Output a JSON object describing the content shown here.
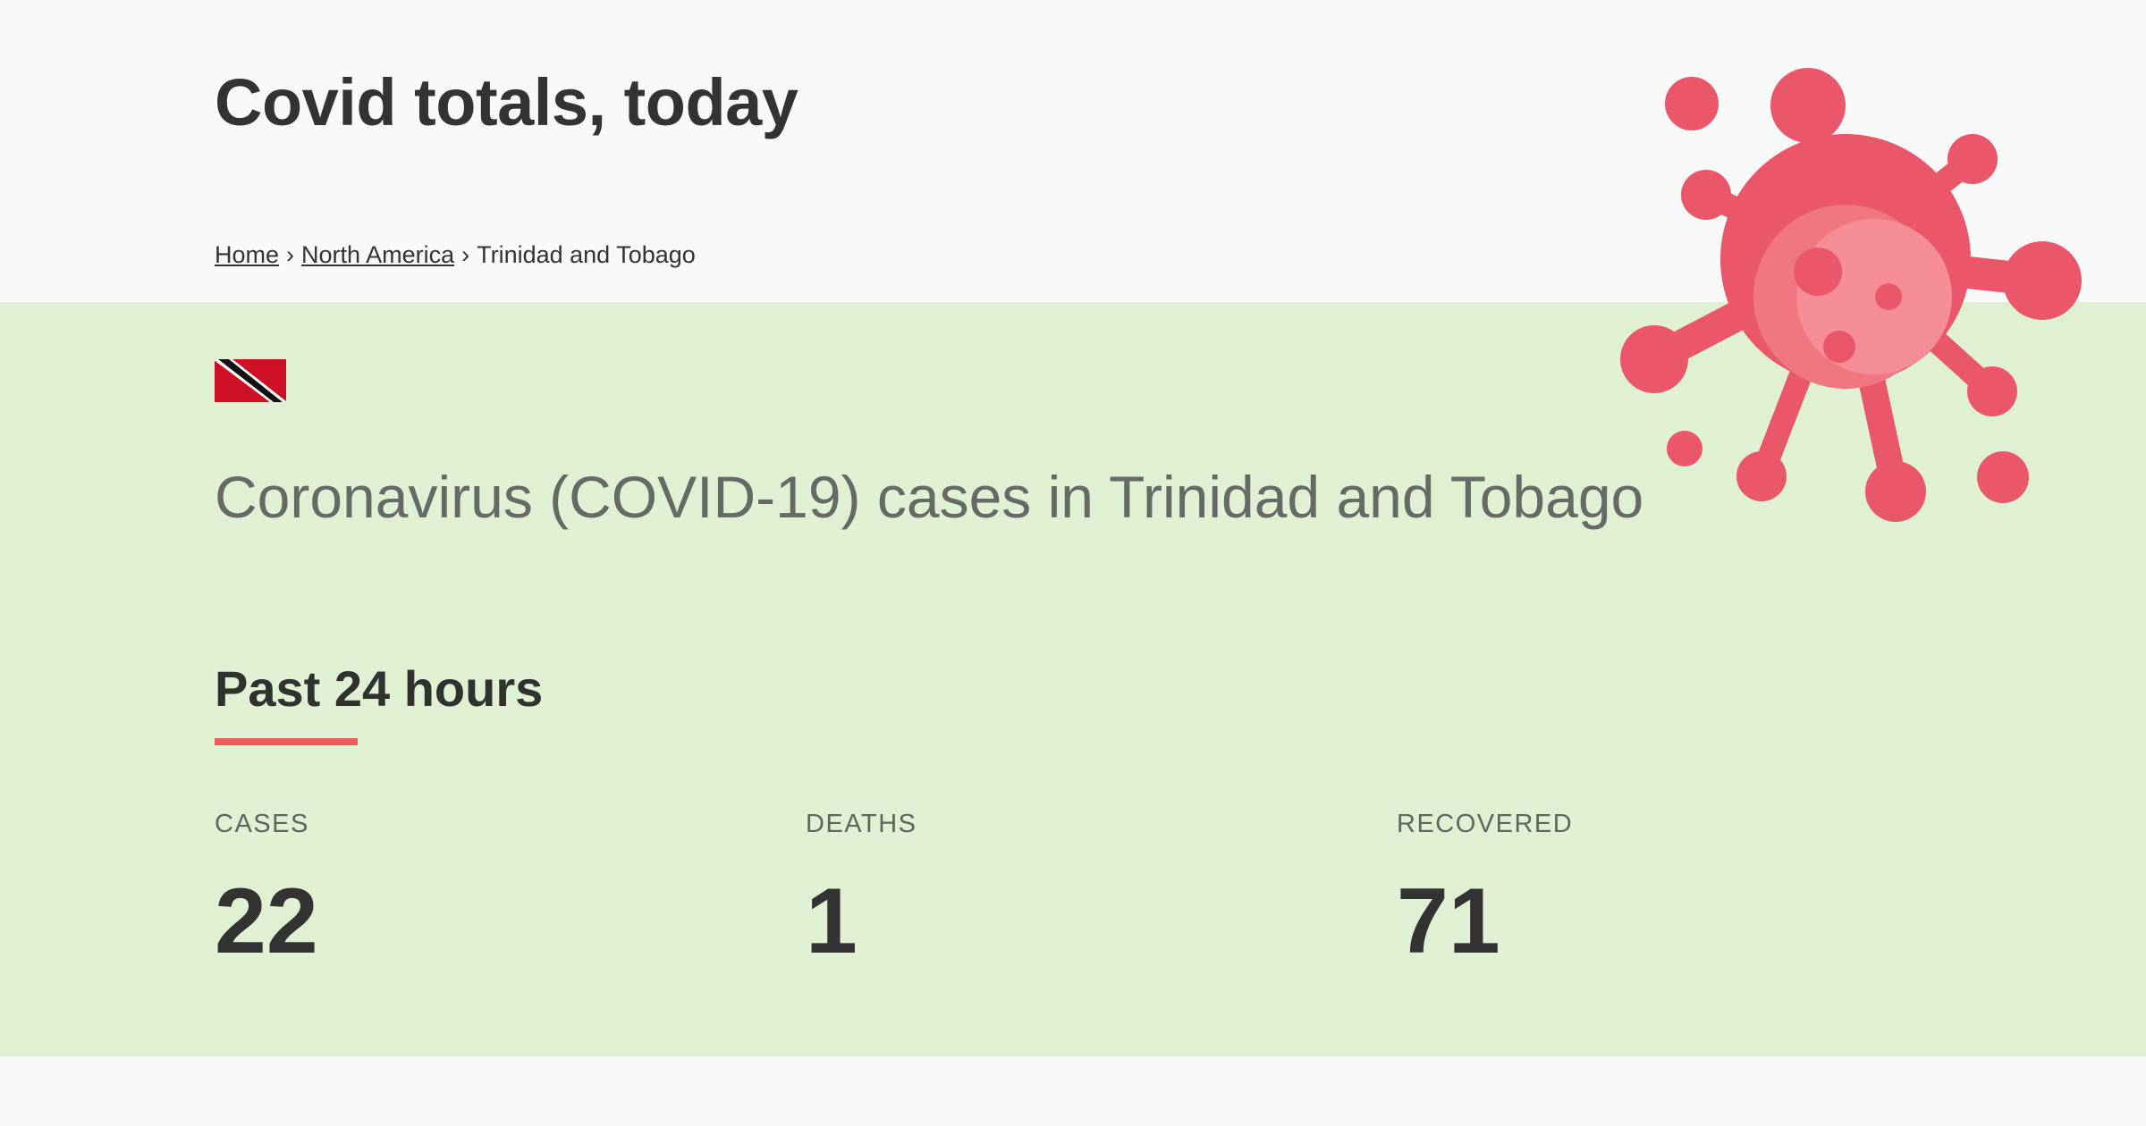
{
  "header": {
    "title": "Covid totals, today"
  },
  "breadcrumb": {
    "home": "Home",
    "region": "North America",
    "separator": "›",
    "current": "Trinidad and Tobago"
  },
  "country": {
    "heading": "Coronavirus (COVID-19) cases in Trinidad and Tobago",
    "flag_icon": "trinidad-and-tobago-flag-icon"
  },
  "past24": {
    "heading": "Past 24 hours",
    "stats": [
      {
        "label": "CASES",
        "value": "22"
      },
      {
        "label": "DEATHS",
        "value": "1"
      },
      {
        "label": "RECOVERED",
        "value": "71"
      }
    ]
  },
  "colors": {
    "accent": "#ea5b5b",
    "band": "#e0f0d3",
    "virus": "#ea576b",
    "page_bg": "#f9f9f9"
  },
  "decoration": {
    "virus_icon": "coronavirus-illustration-icon"
  }
}
